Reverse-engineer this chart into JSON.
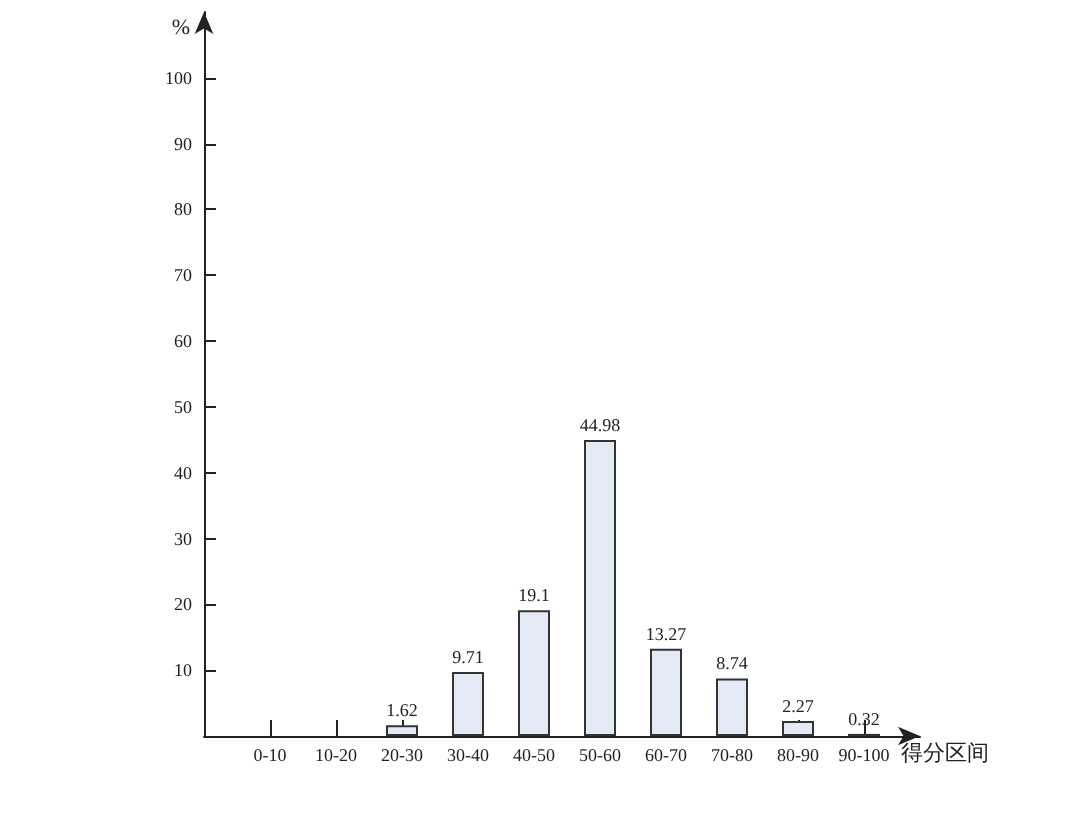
{
  "chart_data": {
    "type": "bar",
    "ylabel": "%",
    "xlabel": "得分区间",
    "categories": [
      "0-10",
      "10-20",
      "20-30",
      "30-40",
      "40-50",
      "50-60",
      "60-70",
      "70-80",
      "80-90",
      "90-100"
    ],
    "values": [
      null,
      null,
      1.62,
      9.71,
      19.1,
      44.98,
      13.27,
      8.74,
      2.27,
      0.32
    ],
    "color": "#e3eaf6",
    "ylim": [
      0,
      110
    ],
    "yticks": [
      10,
      20,
      30,
      40,
      50,
      60,
      70,
      80,
      90,
      100
    ],
    "grid": false,
    "data_labels": true
  }
}
